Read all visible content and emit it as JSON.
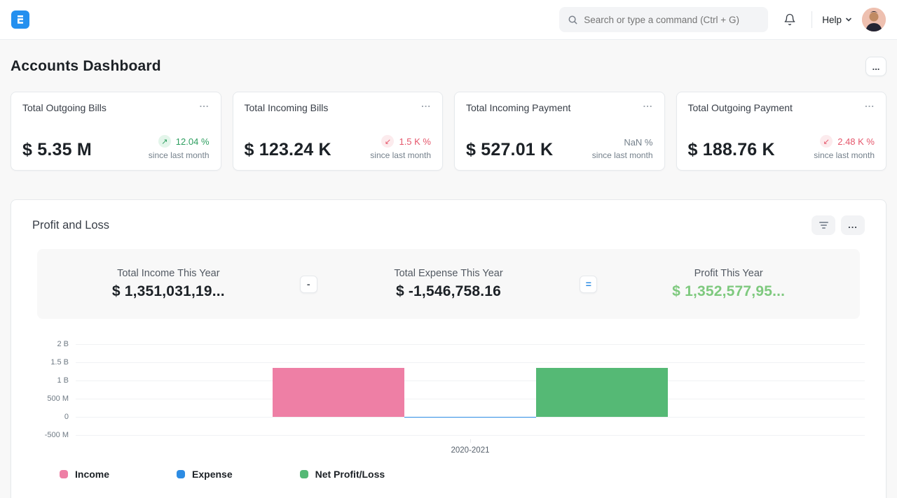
{
  "navbar": {
    "search_placeholder": "Search or type a command (Ctrl + G)",
    "help_label": "Help"
  },
  "page": {
    "title": "Accounts Dashboard"
  },
  "ui": {
    "ellipsis": "..."
  },
  "cards": [
    {
      "title": "Total Outgoing Bills",
      "value": "$ 5.35 M",
      "change": "12.04 %",
      "direction": "up",
      "arrow": "↗",
      "since": "since last month"
    },
    {
      "title": "Total Incoming Bills",
      "value": "$ 123.24 K",
      "change": "1.5 K %",
      "direction": "down",
      "arrow": "↙",
      "since": "since last month"
    },
    {
      "title": "Total Incoming Payment",
      "value": "$ 527.01 K",
      "change": "NaN %",
      "direction": "none",
      "arrow": "",
      "since": "since last month"
    },
    {
      "title": "Total Outgoing Payment",
      "value": "$ 188.76 K",
      "change": "2.48 K %",
      "direction": "down",
      "arrow": "↙",
      "since": "since last month"
    }
  ],
  "chart_card": {
    "title": "Profit and Loss"
  },
  "summary": {
    "items": [
      {
        "label": "Total Income This Year",
        "value": "$ 1,351,031,19..."
      },
      {
        "label": "Total Expense This Year",
        "value": "$ -1,546,758.16"
      },
      {
        "label": "Profit This Year",
        "value": "$ 1,352,577,95..."
      }
    ],
    "operators": [
      "-",
      "="
    ]
  },
  "chart_data": {
    "type": "bar",
    "title": "Profit and Loss",
    "categories": [
      "2020-2021"
    ],
    "series": [
      {
        "name": "Income",
        "color": "#ee7fa5",
        "values": [
          1351031192
        ]
      },
      {
        "name": "Expense",
        "color": "#2d8ce3",
        "values": [
          -1546758.16
        ]
      },
      {
        "name": "Net Profit/Loss",
        "color": "#55b975",
        "values": [
          1352577950
        ]
      }
    ],
    "yticks": [
      {
        "label": "2 B",
        "value": 2000000000
      },
      {
        "label": "1.5 B",
        "value": 1500000000
      },
      {
        "label": "1 B",
        "value": 1000000000
      },
      {
        "label": "500 M",
        "value": 500000000
      },
      {
        "label": "0",
        "value": 0
      },
      {
        "label": "-500 M",
        "value": -500000000
      }
    ],
    "ylim": [
      -500000000,
      2000000000
    ],
    "xlabel": "",
    "ylabel": "",
    "grid": true,
    "legend_position": "bottom"
  }
}
